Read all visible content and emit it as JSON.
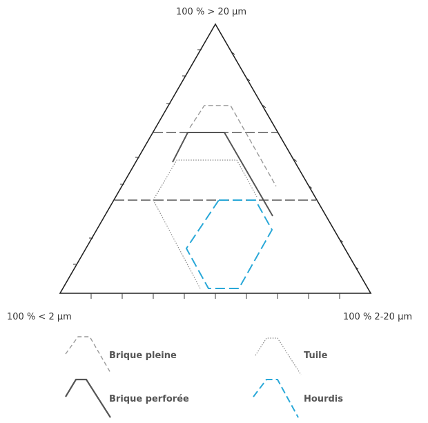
{
  "vertices": {
    "top": "100 % > 20 µm",
    "bottom_left": "100 % < 2 µm",
    "bottom_right": "100 % 2-20 µm"
  },
  "legend": [
    {
      "label": "Brique pleine",
      "color": "#999999",
      "style": "dashed"
    },
    {
      "label": "Tuile",
      "color": "#999999",
      "style": "dotted"
    },
    {
      "label": "Brique perforée",
      "color": "#555555",
      "style": "solid"
    },
    {
      "label": "Hourdis",
      "color": "#29a8d8",
      "style": "dashed"
    }
  ]
}
